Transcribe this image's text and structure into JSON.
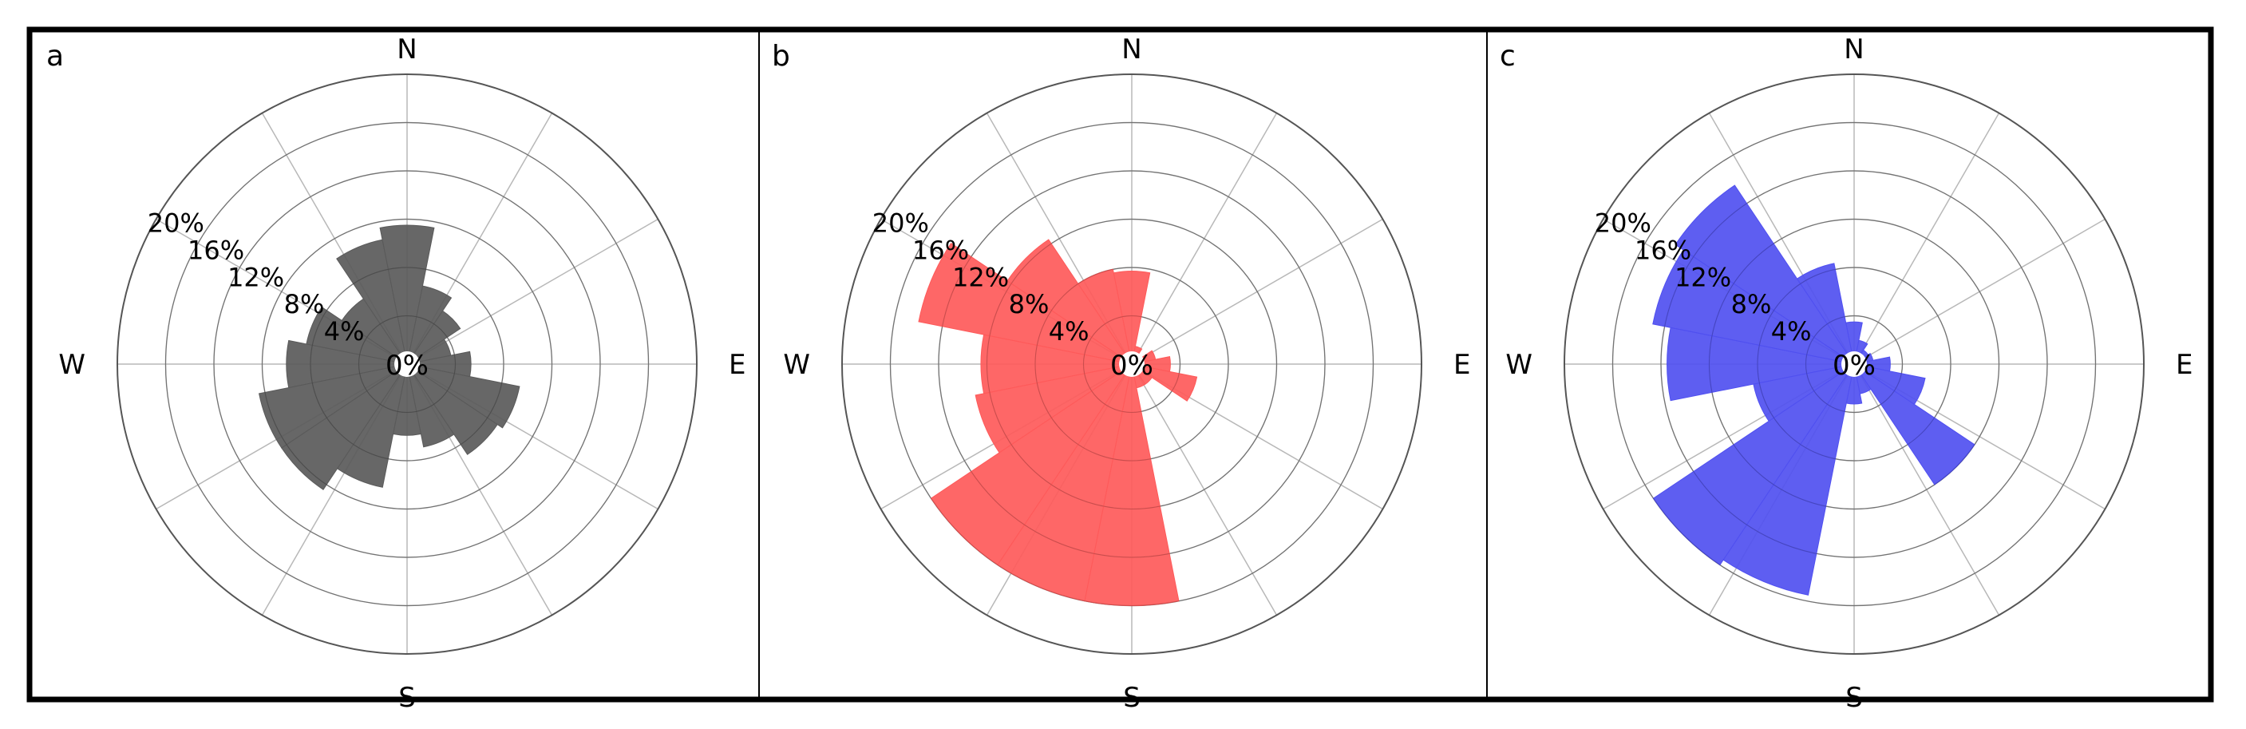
{
  "chart_data": [
    {
      "panel_label": "a",
      "type": "windrose",
      "color": "#5a5a5a",
      "rmax": 24,
      "ring_labels": [
        "4%",
        "8%",
        "12%",
        "16%",
        "20%"
      ],
      "ring_values": [
        4,
        8,
        12,
        16,
        20,
        24
      ],
      "center_label": "0%",
      "compass": {
        "N": "N",
        "E": "E",
        "S": "S",
        "W": "W"
      },
      "directions_deg": [
        0,
        22.5,
        45,
        67.5,
        90,
        112.5,
        135,
        157.5,
        180,
        202.5,
        225,
        247.5,
        270,
        292.5,
        315,
        337.5
      ],
      "values": [
        11.5,
        6.6,
        5.3,
        3.7,
        5.3,
        9.5,
        9.0,
        7.0,
        5.9,
        10.4,
        12.5,
        12.5,
        10.0,
        8.5,
        6.5,
        10.5
      ]
    },
    {
      "panel_label": "b",
      "type": "windrose",
      "color": "#fe5a5a",
      "rmax": 24,
      "ring_labels": [
        "4%",
        "8%",
        "12%",
        "16%",
        "20%"
      ],
      "ring_values": [
        4,
        8,
        12,
        16,
        20,
        24
      ],
      "center_label": "0%",
      "compass": {
        "N": "N",
        "E": "E",
        "S": "S",
        "W": "W"
      },
      "directions_deg": [
        0,
        22.5,
        45,
        67.5,
        90,
        112.5,
        135,
        157.5,
        180,
        202.5,
        225,
        247.5,
        270,
        292.5,
        315,
        337.5
      ],
      "values": [
        7.7,
        1.5,
        1.0,
        2.0,
        3.2,
        5.5,
        2.0,
        2.0,
        20.0,
        20.0,
        20.0,
        13.2,
        12.5,
        18.0,
        12.4,
        8.0
      ]
    },
    {
      "panel_label": "c",
      "type": "windrose",
      "color": "#5050f0",
      "rmax": 24,
      "ring_labels": [
        "4%",
        "8%",
        "12%",
        "16%",
        "20%"
      ],
      "ring_values": [
        4,
        8,
        12,
        16,
        20,
        24
      ],
      "center_label": "0%",
      "compass": {
        "N": "N",
        "E": "E",
        "S": "S",
        "W": "W"
      },
      "directions_deg": [
        0,
        22.5,
        45,
        67.5,
        90,
        112.5,
        135,
        157.5,
        180,
        202.5,
        225,
        247.5,
        270,
        292.5,
        315,
        337.5
      ],
      "values": [
        3.5,
        2.0,
        1.4,
        1.6,
        3.0,
        6.0,
        12.0,
        2.5,
        3.3,
        19.5,
        20.0,
        8.5,
        15.5,
        17.0,
        17.8,
        8.5
      ]
    }
  ]
}
